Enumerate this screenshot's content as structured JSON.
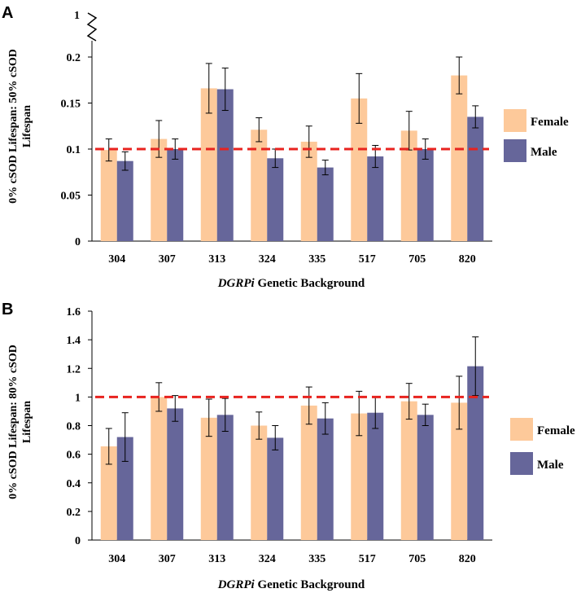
{
  "colors": {
    "female": "#fdc99a",
    "male": "#66669a",
    "reference_line": "#e8231f",
    "error_bar": "#000000"
  },
  "chart_data": [
    {
      "panel": "A",
      "type": "bar",
      "categories": [
        "304",
        "307",
        "313",
        "324",
        "335",
        "517",
        "705",
        "820"
      ],
      "series": [
        {
          "name": "Female",
          "values": [
            0.099,
            0.111,
            0.166,
            0.121,
            0.108,
            0.155,
            0.12,
            0.18
          ],
          "errors": [
            0.012,
            0.02,
            0.027,
            0.013,
            0.017,
            0.027,
            0.021,
            0.02
          ]
        },
        {
          "name": "Male",
          "values": [
            0.087,
            0.1,
            0.165,
            0.09,
            0.08,
            0.092,
            0.1,
            0.135
          ],
          "errors": [
            0.01,
            0.011,
            0.023,
            0.01,
            0.008,
            0.012,
            0.011,
            0.012
          ]
        }
      ],
      "ylabel_line1": "0% cSOD Lifespan: 50% cSOD",
      "ylabel_line2": "Lifespan",
      "xlabel_italic": "DGRPi",
      "xlabel_rest": " Genetic Background",
      "ylim": [
        0,
        0.2
      ],
      "yticks": [
        "0",
        "0.05",
        "0.1",
        "0.15",
        "0.2"
      ],
      "axis_break_label": "1",
      "reference_line": 0.1,
      "legend_position": "right",
      "grid": false
    },
    {
      "panel": "B",
      "type": "bar",
      "categories": [
        "304",
        "307",
        "313",
        "324",
        "335",
        "517",
        "705",
        "820"
      ],
      "series": [
        {
          "name": "Female",
          "values": [
            0.655,
            1.0,
            0.855,
            0.8,
            0.94,
            0.885,
            0.97,
            0.96
          ],
          "errors": [
            0.125,
            0.1,
            0.13,
            0.095,
            0.13,
            0.155,
            0.125,
            0.185
          ]
        },
        {
          "name": "Male",
          "values": [
            0.72,
            0.92,
            0.875,
            0.715,
            0.85,
            0.89,
            0.875,
            1.215
          ],
          "errors": [
            0.17,
            0.09,
            0.115,
            0.085,
            0.11,
            0.11,
            0.075,
            0.205
          ]
        }
      ],
      "ylabel_line1": "0% cSOD Lifespan: 80% cSOD",
      "ylabel_line2": "Lifespan",
      "xlabel_italic": "DGRPi",
      "xlabel_rest": " Genetic Background",
      "ylim": [
        0,
        1.6
      ],
      "yticks": [
        "0",
        "0.2",
        "0.4",
        "0.6",
        "0.8",
        "1",
        "1.2",
        "1.4",
        "1.6"
      ],
      "reference_line": 1.0,
      "legend_position": "right",
      "grid": false
    }
  ]
}
